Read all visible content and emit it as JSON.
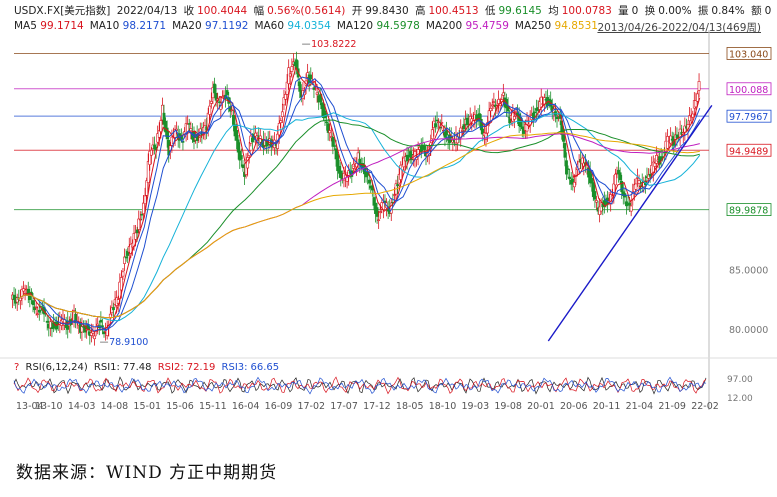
{
  "header": {
    "symbol": "USDX.FX[美元指数]",
    "date": "2022/04/13",
    "close_label": "收",
    "close": "100.4044",
    "change_label": "幅",
    "change": "0.56%(0.5614)",
    "open_label": "开",
    "open": "99.8430",
    "high_label": "高",
    "high": "100.4513",
    "low_label": "低",
    "low": "99.6145",
    "avg_label": "均",
    "avg": "100.0783",
    "vol_label": "量",
    "vol": "0",
    "turnover_label": "换",
    "turnover": "0.00%",
    "amp_label": "振",
    "amp": "0.84%",
    "amount_label": "额",
    "amount": "0",
    "range": "2013/04/26-2022/04/13(469周)"
  },
  "ma_legend": [
    {
      "label": "MA5",
      "value": "99.1714",
      "color": "#d8141e"
    },
    {
      "label": "MA10",
      "value": "98.2171",
      "color": "#1f4fd1"
    },
    {
      "label": "MA20",
      "value": "97.1192",
      "color": "#1f4fd1"
    },
    {
      "label": "MA60",
      "value": "94.0354",
      "color": "#15b2d8"
    },
    {
      "label": "MA120",
      "value": "94.5978",
      "color": "#1a8f2a"
    },
    {
      "label": "MA200",
      "value": "95.4759",
      "color": "#c020c0"
    },
    {
      "label": "MA250",
      "value": "94.8531",
      "color": "#e6a800"
    }
  ],
  "rsi": {
    "title": "RSI(6,12,24)",
    "rsi1_label": "RSI1:",
    "rsi1": "77.48",
    "rsi1_color": "#222222",
    "rsi2_label": "RSI2:",
    "rsi2": "72.19",
    "rsi2_color": "#d8141e",
    "rsi3_label": "RSI3:",
    "rsi3": "66.65",
    "rsi3_color": "#1f4fd1",
    "ticks": [
      "97.00",
      "12.00"
    ]
  },
  "chart_data": {
    "type": "candlestick",
    "x_ticks": [
      "13-04",
      "13-10",
      "14-03",
      "14-08",
      "15-01",
      "15-06",
      "15-11",
      "16-04",
      "16-09",
      "17-02",
      "17-07",
      "17-12",
      "18-05",
      "18-10",
      "19-03",
      "19-08",
      "20-01",
      "20-06",
      "20-11",
      "21-04",
      "21-09",
      "22-02"
    ],
    "y_ticks": [
      "85.0000",
      "80.0000"
    ],
    "ylim": [
      78.0,
      104.5
    ],
    "price_labels": [
      {
        "value": 103.04,
        "text": "103.040",
        "color": "#8a4a1a"
      },
      {
        "value": 100.088,
        "text": "100.088",
        "color": "#c020c0"
      },
      {
        "value": 97.7967,
        "text": "97.7967",
        "color": "#1f4fd1"
      },
      {
        "value": 94.9489,
        "text": "94.9489",
        "color": "#d8141e"
      },
      {
        "value": 89.9878,
        "text": "89.9878",
        "color": "#1a8f2a"
      }
    ],
    "annotations": [
      {
        "text": "103.8222",
        "date": "2017-01",
        "value": 103.8222
      },
      {
        "text": "78.9100",
        "date": "2014-05",
        "value": 78.91
      }
    ],
    "trendline": [
      {
        "date": "2020-04",
        "value": 79.0
      },
      {
        "date": "2022-04",
        "value": 98.7
      }
    ],
    "close_series": [
      {
        "d": "2013-04",
        "v": 82.5
      },
      {
        "d": "2013-05",
        "v": 83.2
      },
      {
        "d": "2013-06",
        "v": 82.8
      },
      {
        "d": "2013-07",
        "v": 81.6
      },
      {
        "d": "2013-08",
        "v": 81.5
      },
      {
        "d": "2013-09",
        "v": 80.4
      },
      {
        "d": "2013-10",
        "v": 80.2
      },
      {
        "d": "2013-11",
        "v": 80.8
      },
      {
        "d": "2013-12",
        "v": 80.2
      },
      {
        "d": "2014-01",
        "v": 81.2
      },
      {
        "d": "2014-02",
        "v": 79.9
      },
      {
        "d": "2014-03",
        "v": 80.1
      },
      {
        "d": "2014-04",
        "v": 79.5
      },
      {
        "d": "2014-05",
        "v": 80.4
      },
      {
        "d": "2014-06",
        "v": 79.8
      },
      {
        "d": "2014-07",
        "v": 81.5
      },
      {
        "d": "2014-08",
        "v": 82.8
      },
      {
        "d": "2014-09",
        "v": 85.9
      },
      {
        "d": "2014-10",
        "v": 86.9
      },
      {
        "d": "2014-11",
        "v": 88.4
      },
      {
        "d": "2014-12",
        "v": 90.3
      },
      {
        "d": "2015-01",
        "v": 94.8
      },
      {
        "d": "2015-02",
        "v": 95.3
      },
      {
        "d": "2015-03",
        "v": 98.4
      },
      {
        "d": "2015-04",
        "v": 94.6
      },
      {
        "d": "2015-05",
        "v": 96.9
      },
      {
        "d": "2015-06",
        "v": 95.5
      },
      {
        "d": "2015-07",
        "v": 97.3
      },
      {
        "d": "2015-08",
        "v": 95.8
      },
      {
        "d": "2015-09",
        "v": 96.4
      },
      {
        "d": "2015-10",
        "v": 96.9
      },
      {
        "d": "2015-11",
        "v": 100.2
      },
      {
        "d": "2015-12",
        "v": 98.7
      },
      {
        "d": "2016-01",
        "v": 99.6
      },
      {
        "d": "2016-02",
        "v": 98.2
      },
      {
        "d": "2016-03",
        "v": 94.6
      },
      {
        "d": "2016-04",
        "v": 93.1
      },
      {
        "d": "2016-05",
        "v": 95.9
      },
      {
        "d": "2016-06",
        "v": 96.1
      },
      {
        "d": "2016-07",
        "v": 95.5
      },
      {
        "d": "2016-08",
        "v": 95.6
      },
      {
        "d": "2016-09",
        "v": 95.4
      },
      {
        "d": "2016-10",
        "v": 98.4
      },
      {
        "d": "2016-11",
        "v": 101.5
      },
      {
        "d": "2016-12",
        "v": 102.2
      },
      {
        "d": "2017-01",
        "v": 99.5
      },
      {
        "d": "2017-02",
        "v": 101.1
      },
      {
        "d": "2017-03",
        "v": 100.3
      },
      {
        "d": "2017-04",
        "v": 99.0
      },
      {
        "d": "2017-05",
        "v": 97.0
      },
      {
        "d": "2017-06",
        "v": 95.6
      },
      {
        "d": "2017-07",
        "v": 92.9
      },
      {
        "d": "2017-08",
        "v": 92.7
      },
      {
        "d": "2017-09",
        "v": 93.1
      },
      {
        "d": "2017-10",
        "v": 94.5
      },
      {
        "d": "2017-11",
        "v": 92.9
      },
      {
        "d": "2017-12",
        "v": 92.1
      },
      {
        "d": "2018-01",
        "v": 89.1
      },
      {
        "d": "2018-02",
        "v": 90.6
      },
      {
        "d": "2018-03",
        "v": 89.9
      },
      {
        "d": "2018-04",
        "v": 91.8
      },
      {
        "d": "2018-05",
        "v": 93.9
      },
      {
        "d": "2018-06",
        "v": 94.5
      },
      {
        "d": "2018-07",
        "v": 94.5
      },
      {
        "d": "2018-08",
        "v": 95.1
      },
      {
        "d": "2018-09",
        "v": 94.7
      },
      {
        "d": "2018-10",
        "v": 97.1
      },
      {
        "d": "2018-11",
        "v": 97.2
      },
      {
        "d": "2018-12",
        "v": 96.1
      },
      {
        "d": "2019-01",
        "v": 95.6
      },
      {
        "d": "2019-02",
        "v": 96.2
      },
      {
        "d": "2019-03",
        "v": 97.3
      },
      {
        "d": "2019-04",
        "v": 97.5
      },
      {
        "d": "2019-05",
        "v": 97.7
      },
      {
        "d": "2019-06",
        "v": 96.1
      },
      {
        "d": "2019-07",
        "v": 98.5
      },
      {
        "d": "2019-08",
        "v": 98.9
      },
      {
        "d": "2019-09",
        "v": 99.4
      },
      {
        "d": "2019-10",
        "v": 97.4
      },
      {
        "d": "2019-11",
        "v": 98.3
      },
      {
        "d": "2019-12",
        "v": 96.4
      },
      {
        "d": "2020-01",
        "v": 97.4
      },
      {
        "d": "2020-02",
        "v": 98.1
      },
      {
        "d": "2020-03",
        "v": 99.1
      },
      {
        "d": "2020-04",
        "v": 99.0
      },
      {
        "d": "2020-05",
        "v": 98.3
      },
      {
        "d": "2020-06",
        "v": 97.4
      },
      {
        "d": "2020-07",
        "v": 93.3
      },
      {
        "d": "2020-08",
        "v": 92.1
      },
      {
        "d": "2020-09",
        "v": 93.9
      },
      {
        "d": "2020-10",
        "v": 94.0
      },
      {
        "d": "2020-11",
        "v": 91.9
      },
      {
        "d": "2020-12",
        "v": 89.9
      },
      {
        "d": "2021-01",
        "v": 90.6
      },
      {
        "d": "2021-02",
        "v": 90.9
      },
      {
        "d": "2021-03",
        "v": 93.2
      },
      {
        "d": "2021-04",
        "v": 91.3
      },
      {
        "d": "2021-05",
        "v": 90.0
      },
      {
        "d": "2021-06",
        "v": 92.4
      },
      {
        "d": "2021-07",
        "v": 92.2
      },
      {
        "d": "2021-08",
        "v": 92.6
      },
      {
        "d": "2021-09",
        "v": 94.2
      },
      {
        "d": "2021-10",
        "v": 94.1
      },
      {
        "d": "2021-11",
        "v": 95.9
      },
      {
        "d": "2021-12",
        "v": 95.7
      },
      {
        "d": "2022-01",
        "v": 96.5
      },
      {
        "d": "2022-02",
        "v": 96.7
      },
      {
        "d": "2022-03",
        "v": 98.3
      },
      {
        "d": "2022-04",
        "v": 100.4
      }
    ]
  },
  "footer": {
    "source": "数据来源：WIND  方正中期期货"
  }
}
